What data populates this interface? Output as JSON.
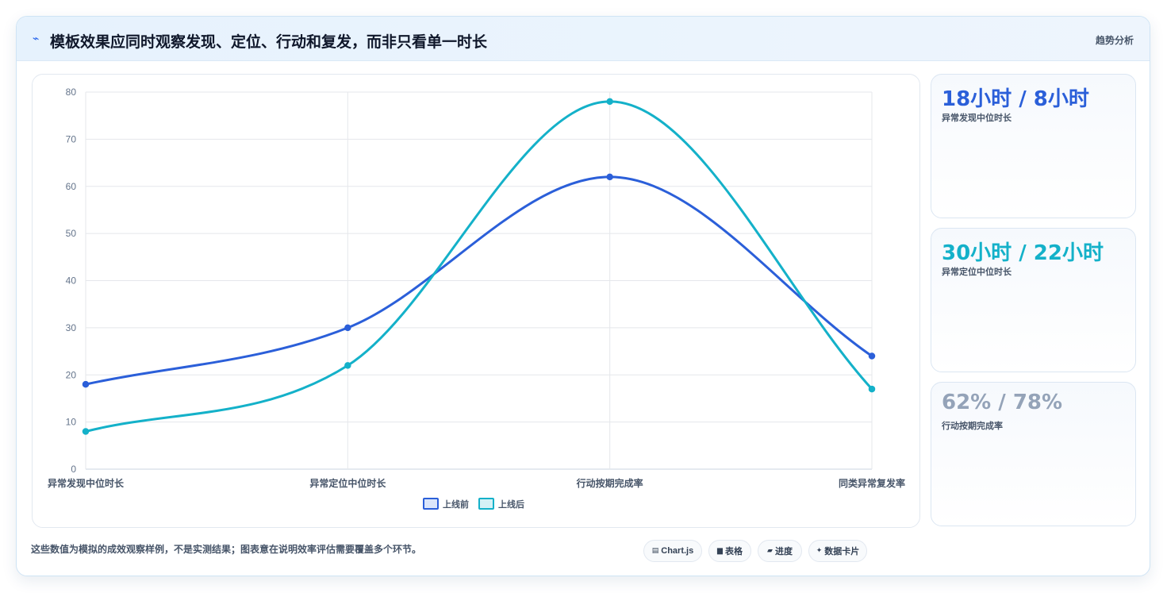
{
  "header": {
    "icon": "trend-icon",
    "title": "模板效果应同时观察发现、定位、行动和复发，而非只看单一时长",
    "tag": "趋势分析"
  },
  "chart_data": {
    "type": "line",
    "categories": [
      "异常发现中位时长",
      "异常定位中位时长",
      "行动按期完成率",
      "同类异常复发率"
    ],
    "series": [
      {
        "name": "上线前",
        "values": [
          18,
          30,
          62,
          24
        ],
        "color": "#2b5fd9"
      },
      {
        "name": "上线后",
        "values": [
          8,
          22,
          78,
          17
        ],
        "color": "#14b1c9"
      }
    ],
    "ylim": [
      0,
      80
    ],
    "yticks": [
      0,
      10,
      20,
      30,
      40,
      50,
      60,
      70,
      80
    ],
    "grid": true,
    "legend": "bottom",
    "smooth": true
  },
  "stats": [
    {
      "value": "18小时 / 8小时",
      "label": "异常发现中位时长",
      "color": "#2b5fd9"
    },
    {
      "value": "30小时 / 22小时",
      "label": "异常定位中位时长",
      "color": "#14b1c9"
    },
    {
      "value": "62% / 78%",
      "label": "行动按期完成率",
      "color": "#94a3b8"
    }
  ],
  "footnote": "这些数值为模拟的成效观察样例，不是实测结果；图表意在说明效率评估需要覆盖多个环节。",
  "pills": [
    {
      "icon": "chart-icon",
      "glyph": "▤",
      "label": "Chart.js"
    },
    {
      "icon": "table-icon",
      "glyph": "▆",
      "label": "表格"
    },
    {
      "icon": "progress-icon",
      "glyph": "▰",
      "label": "进度"
    },
    {
      "icon": "card-icon",
      "glyph": "✦",
      "label": "数据卡片"
    }
  ]
}
